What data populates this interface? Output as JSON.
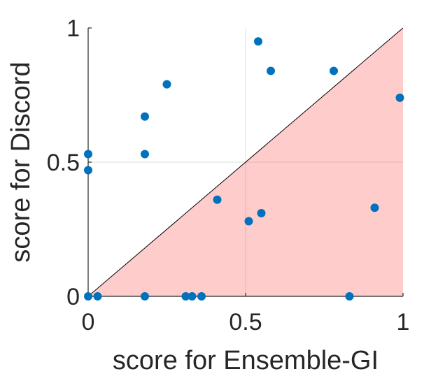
{
  "chart_data": {
    "type": "scatter",
    "title": "",
    "xlabel": "score for Ensemble-GI",
    "ylabel": "score for Discord",
    "xlim": [
      0,
      1
    ],
    "ylim": [
      0,
      1
    ],
    "xticks": [
      0,
      0.5,
      1
    ],
    "yticks": [
      0,
      0.5,
      1
    ],
    "xtick_labels": [
      "0",
      "0.5",
      "1"
    ],
    "ytick_labels": [
      "0",
      "0.5",
      "1"
    ],
    "grid": true,
    "legend": "none",
    "reference_line": "y = x",
    "shaded_region": "below y = x",
    "colors": {
      "points": "#0072BD",
      "shade": "#FFCCCC",
      "line": "#000000"
    },
    "points": [
      {
        "x": 0.0,
        "y": 0.53
      },
      {
        "x": 0.0,
        "y": 0.47
      },
      {
        "x": 0.0,
        "y": 0.0
      },
      {
        "x": 0.03,
        "y": 0.0
      },
      {
        "x": 0.18,
        "y": 0.67
      },
      {
        "x": 0.18,
        "y": 0.53
      },
      {
        "x": 0.18,
        "y": 0.0
      },
      {
        "x": 0.25,
        "y": 0.79
      },
      {
        "x": 0.31,
        "y": 0.0
      },
      {
        "x": 0.33,
        "y": 0.0
      },
      {
        "x": 0.36,
        "y": 0.0
      },
      {
        "x": 0.41,
        "y": 0.36
      },
      {
        "x": 0.51,
        "y": 0.28
      },
      {
        "x": 0.54,
        "y": 0.95
      },
      {
        "x": 0.55,
        "y": 0.31
      },
      {
        "x": 0.58,
        "y": 0.84
      },
      {
        "x": 0.78,
        "y": 0.84
      },
      {
        "x": 0.83,
        "y": 0.0
      },
      {
        "x": 0.91,
        "y": 0.33
      },
      {
        "x": 0.99,
        "y": 0.74
      }
    ]
  }
}
